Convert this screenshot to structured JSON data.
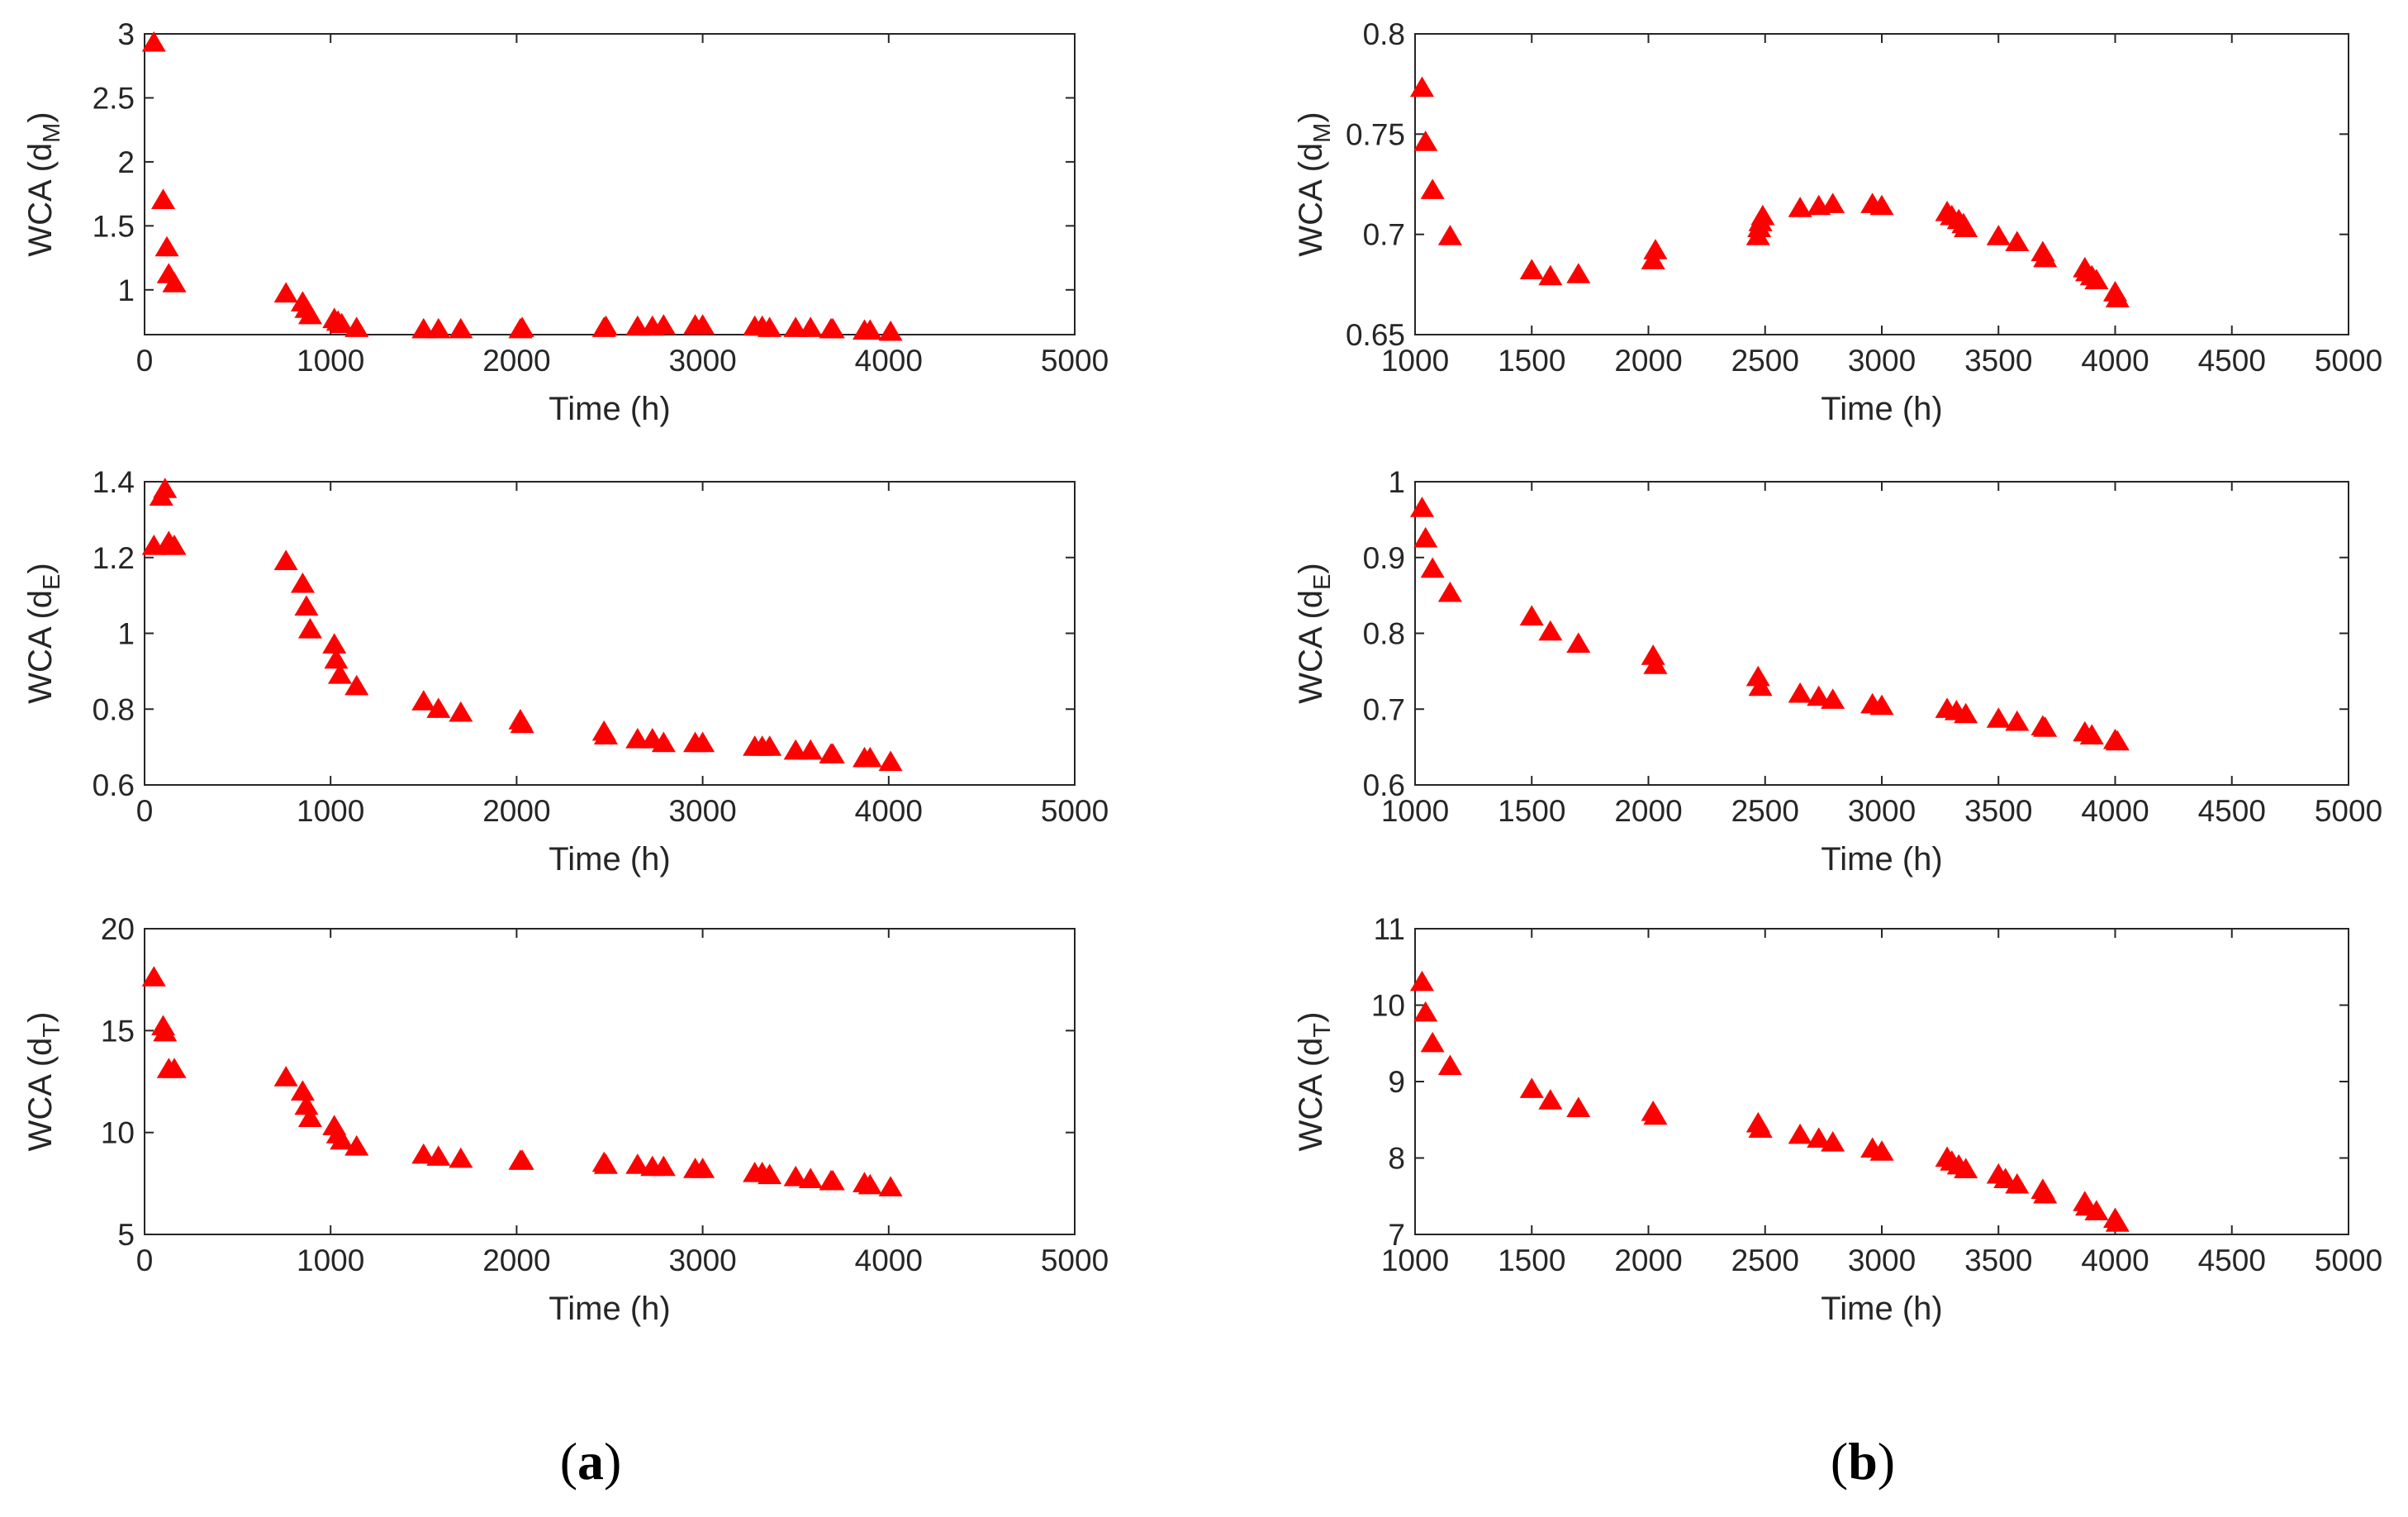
{
  "marker_color": "#ff0000",
  "axis_color": "#262626",
  "chart_data": [
    {
      "id": "a-M",
      "type": "scatter",
      "marker": "triangle",
      "xlabel": "Time (h)",
      "ylabel_main": "WCA (d",
      "ylabel_sub": "M",
      "ylabel_close": ")",
      "xlim": [
        0,
        5000
      ],
      "ylim": [
        0.65,
        3
      ],
      "xticks": [
        0,
        1000,
        2000,
        3000,
        4000,
        5000
      ],
      "xtick_labels": [
        "0",
        "1000",
        "2000",
        "3000",
        "4000",
        "5000"
      ],
      "yticks": [
        1,
        1.5,
        2,
        2.5,
        3
      ],
      "ytick_labels": [
        "1",
        "1.5",
        "2",
        "2.5",
        "3"
      ],
      "x": [
        50,
        100,
        120,
        130,
        160,
        760,
        850,
        870,
        890,
        1020,
        1040,
        1060,
        1140,
        1500,
        1580,
        1700,
        2020,
        2030,
        2470,
        2480,
        2650,
        2730,
        2790,
        2960,
        3000,
        3280,
        3320,
        3360,
        3500,
        3580,
        3690,
        3700,
        3870,
        3900,
        4010
      ],
      "y": [
        2.93,
        1.7,
        1.33,
        1.12,
        1.05,
        0.97,
        0.9,
        0.85,
        0.8,
        0.77,
        0.75,
        0.73,
        0.7,
        0.69,
        0.69,
        0.69,
        0.69,
        0.7,
        0.7,
        0.71,
        0.71,
        0.71,
        0.72,
        0.72,
        0.72,
        0.71,
        0.71,
        0.7,
        0.7,
        0.7,
        0.69,
        0.69,
        0.68,
        0.68,
        0.67
      ]
    },
    {
      "id": "b-M",
      "type": "scatter",
      "marker": "triangle",
      "xlabel": "Time (h)",
      "ylabel_main": "WCA (d",
      "ylabel_sub": "M",
      "ylabel_close": ")",
      "xlim": [
        1000,
        5000
      ],
      "ylim": [
        0.65,
        0.8
      ],
      "xticks": [
        1000,
        1500,
        2000,
        2500,
        3000,
        3500,
        4000,
        4500,
        5000
      ],
      "xtick_labels": [
        "1000",
        "1500",
        "2000",
        "2500",
        "3000",
        "3500",
        "4000",
        "4500",
        "5000"
      ],
      "yticks": [
        0.65,
        0.7,
        0.75,
        0.8
      ],
      "ytick_labels": [
        "0.65",
        "0.7",
        "0.75",
        "0.8"
      ],
      "x": [
        1030,
        1045,
        1075,
        1150,
        1500,
        1580,
        1700,
        2020,
        2030,
        2470,
        2475,
        2480,
        2490,
        2650,
        2730,
        2790,
        2960,
        3000,
        3280,
        3300,
        3330,
        3350,
        3360,
        3500,
        3580,
        3690,
        3700,
        3870,
        3880,
        3900,
        3920,
        4000,
        4010
      ],
      "y": [
        0.773,
        0.746,
        0.722,
        0.699,
        0.682,
        0.679,
        0.68,
        0.687,
        0.692,
        0.699,
        0.703,
        0.706,
        0.709,
        0.713,
        0.714,
        0.715,
        0.715,
        0.714,
        0.711,
        0.709,
        0.707,
        0.705,
        0.703,
        0.699,
        0.696,
        0.691,
        0.688,
        0.683,
        0.681,
        0.679,
        0.677,
        0.671,
        0.668
      ]
    },
    {
      "id": "a-E",
      "type": "scatter",
      "marker": "triangle",
      "xlabel": "Time (h)",
      "ylabel_main": "WCA (d",
      "ylabel_sub": "E",
      "ylabel_close": ")",
      "xlim": [
        0,
        5000
      ],
      "ylim": [
        0.6,
        1.4
      ],
      "xticks": [
        0,
        1000,
        2000,
        3000,
        4000,
        5000
      ],
      "xtick_labels": [
        "0",
        "1000",
        "2000",
        "3000",
        "4000",
        "5000"
      ],
      "yticks": [
        0.6,
        0.8,
        1,
        1.2,
        1.4
      ],
      "ytick_labels": [
        "0.6",
        "0.8",
        "1",
        "1.2",
        "1.4"
      ],
      "x": [
        50,
        90,
        110,
        120,
        130,
        160,
        760,
        850,
        870,
        890,
        1020,
        1030,
        1050,
        1140,
        1500,
        1580,
        1700,
        2020,
        2030,
        2470,
        2480,
        2650,
        2730,
        2790,
        2960,
        3000,
        3280,
        3320,
        3360,
        3500,
        3580,
        3690,
        3700,
        3870,
        3900,
        4010
      ],
      "y": [
        1.23,
        1.36,
        1.38,
        1.23,
        1.24,
        1.23,
        1.19,
        1.13,
        1.07,
        1.01,
        0.97,
        0.93,
        0.89,
        0.86,
        0.82,
        0.8,
        0.79,
        0.77,
        0.76,
        0.74,
        0.73,
        0.72,
        0.72,
        0.71,
        0.71,
        0.71,
        0.7,
        0.7,
        0.7,
        0.69,
        0.69,
        0.68,
        0.68,
        0.67,
        0.67,
        0.66
      ]
    },
    {
      "id": "b-E",
      "type": "scatter",
      "marker": "triangle",
      "xlabel": "Time (h)",
      "ylabel_main": "WCA (d",
      "ylabel_sub": "E",
      "ylabel_close": ")",
      "xlim": [
        1000,
        5000
      ],
      "ylim": [
        0.6,
        1
      ],
      "xticks": [
        1000,
        1500,
        2000,
        2500,
        3000,
        3500,
        4000,
        4500,
        5000
      ],
      "xtick_labels": [
        "1000",
        "1500",
        "2000",
        "2500",
        "3000",
        "3500",
        "4000",
        "4500",
        "5000"
      ],
      "yticks": [
        0.6,
        0.7,
        0.8,
        0.9,
        1
      ],
      "ytick_labels": [
        "0.6",
        "0.7",
        "0.8",
        "0.9",
        "1"
      ],
      "x": [
        1030,
        1045,
        1075,
        1150,
        1500,
        1580,
        1700,
        2020,
        2030,
        2470,
        2480,
        2650,
        2730,
        2790,
        2960,
        3000,
        3280,
        3320,
        3360,
        3500,
        3580,
        3690,
        3700,
        3870,
        3900,
        4000,
        4010
      ],
      "y": [
        0.965,
        0.925,
        0.885,
        0.853,
        0.822,
        0.802,
        0.786,
        0.77,
        0.758,
        0.742,
        0.729,
        0.72,
        0.716,
        0.712,
        0.706,
        0.704,
        0.7,
        0.697,
        0.693,
        0.687,
        0.683,
        0.677,
        0.675,
        0.669,
        0.665,
        0.659,
        0.657
      ]
    },
    {
      "id": "a-T",
      "type": "scatter",
      "marker": "triangle",
      "xlabel": "Time (h)",
      "ylabel_main": "WCA (d",
      "ylabel_sub": "T",
      "ylabel_close": ")",
      "xlim": [
        0,
        5000
      ],
      "ylim": [
        5,
        20
      ],
      "xticks": [
        0,
        1000,
        2000,
        3000,
        4000,
        5000
      ],
      "xtick_labels": [
        "0",
        "1000",
        "2000",
        "3000",
        "4000",
        "5000"
      ],
      "yticks": [
        5,
        10,
        15,
        20
      ],
      "ytick_labels": [
        "5",
        "10",
        "15",
        "20"
      ],
      "x": [
        50,
        100,
        110,
        130,
        160,
        760,
        850,
        870,
        890,
        1020,
        1040,
        1060,
        1140,
        1500,
        1580,
        1700,
        2020,
        2030,
        2470,
        2480,
        2650,
        2730,
        2790,
        2960,
        3000,
        3280,
        3320,
        3360,
        3500,
        3580,
        3690,
        3700,
        3870,
        3900,
        4010
      ],
      "y": [
        17.6,
        15.2,
        14.9,
        13.1,
        13.1,
        12.7,
        12.0,
        11.3,
        10.7,
        10.3,
        9.9,
        9.6,
        9.3,
        8.9,
        8.8,
        8.7,
        8.6,
        8.6,
        8.5,
        8.4,
        8.4,
        8.3,
        8.3,
        8.2,
        8.2,
        8.0,
        8.0,
        7.9,
        7.8,
        7.7,
        7.6,
        7.6,
        7.5,
        7.4,
        7.3
      ]
    },
    {
      "id": "b-T",
      "type": "scatter",
      "marker": "triangle",
      "xlabel": "Time (h)",
      "ylabel_main": "WCA (d",
      "ylabel_sub": "T",
      "ylabel_close": ")",
      "xlim": [
        1000,
        5000
      ],
      "ylim": [
        7,
        11
      ],
      "xticks": [
        1000,
        1500,
        2000,
        2500,
        3000,
        3500,
        4000,
        4500,
        5000
      ],
      "xtick_labels": [
        "1000",
        "1500",
        "2000",
        "2500",
        "3000",
        "3500",
        "4000",
        "4500",
        "5000"
      ],
      "yticks": [
        7,
        8,
        9,
        10,
        11
      ],
      "ytick_labels": [
        "7",
        "8",
        "9",
        "10",
        "11"
      ],
      "x": [
        1030,
        1045,
        1075,
        1150,
        1500,
        1580,
        1700,
        2020,
        2030,
        2470,
        2480,
        2650,
        2730,
        2790,
        2960,
        3000,
        3280,
        3300,
        3330,
        3360,
        3500,
        3530,
        3580,
        3690,
        3700,
        3870,
        3880,
        3920,
        4000,
        4010
      ],
      "y": [
        10.3,
        9.9,
        9.5,
        9.2,
        8.9,
        8.75,
        8.65,
        8.6,
        8.55,
        8.45,
        8.38,
        8.3,
        8.25,
        8.2,
        8.12,
        8.08,
        8.0,
        7.95,
        7.9,
        7.85,
        7.78,
        7.72,
        7.65,
        7.58,
        7.52,
        7.42,
        7.36,
        7.3,
        7.2,
        7.15
      ]
    }
  ],
  "panel_labels": {
    "a": {
      "open": "(",
      "letter": "a",
      "close": ")"
    },
    "b": {
      "open": "(",
      "letter": "b",
      "close": ")"
    }
  }
}
